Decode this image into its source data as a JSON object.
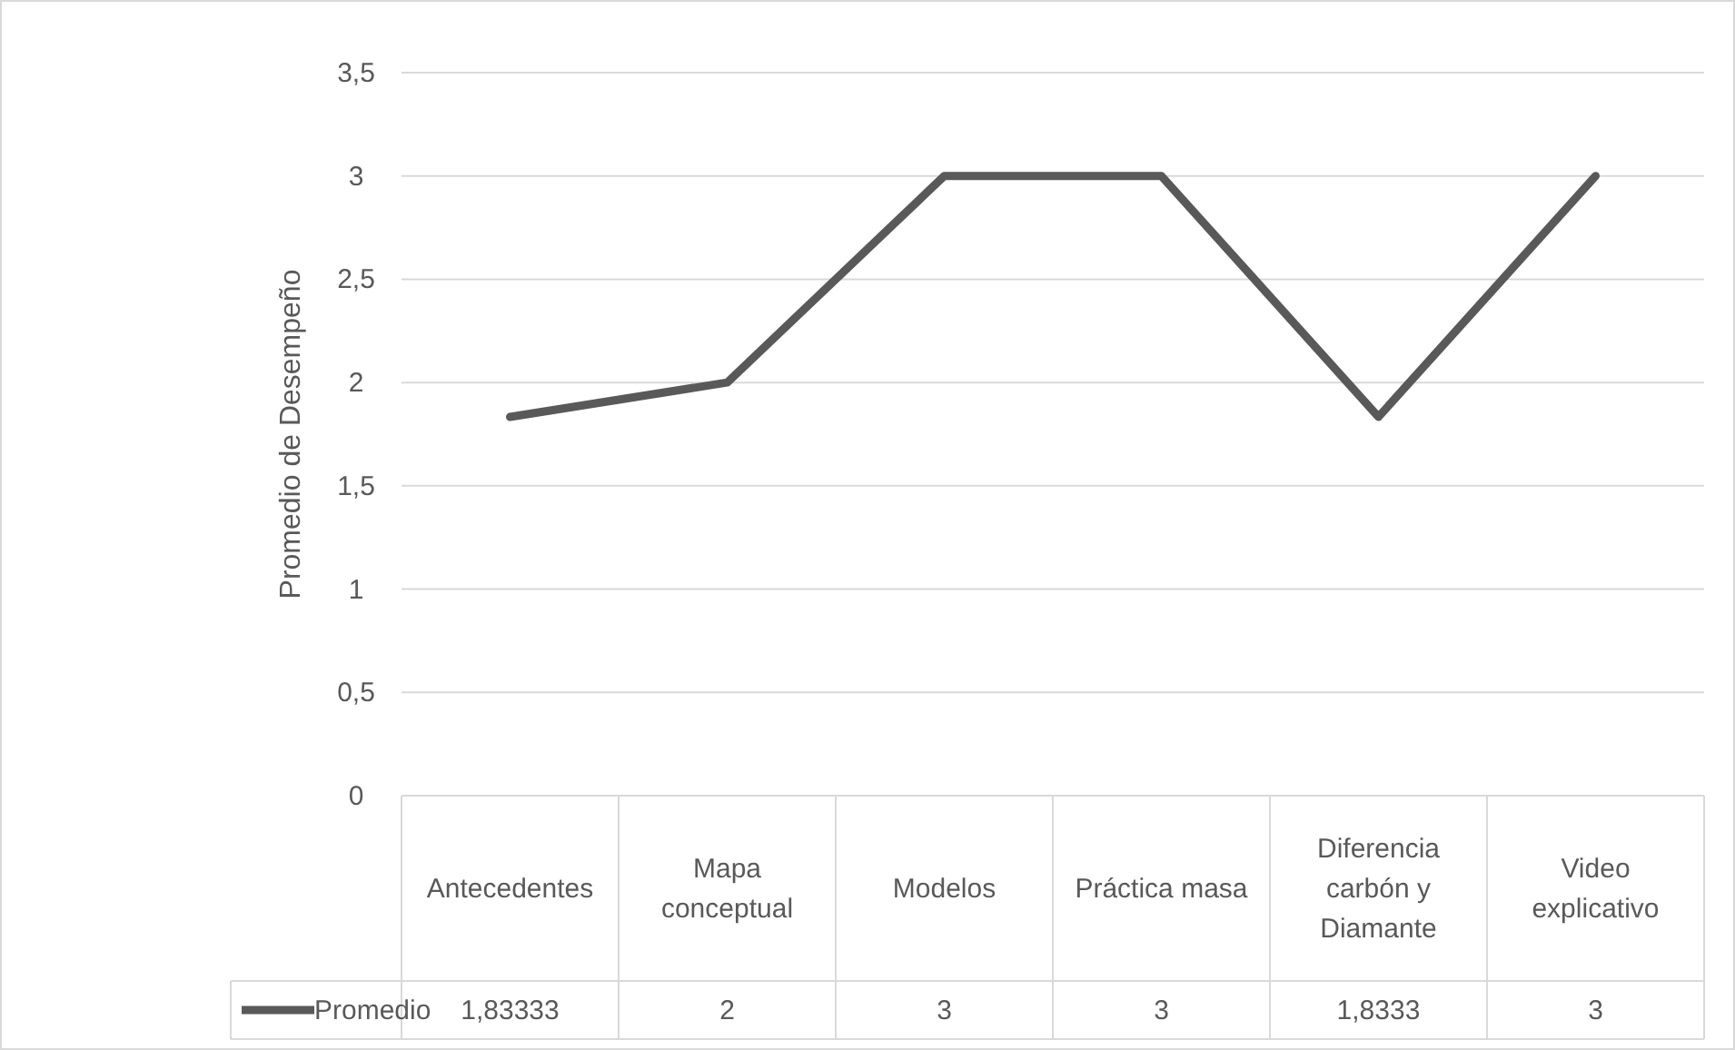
{
  "chart_data": {
    "type": "line",
    "ylabel": "Promedio de Desempeño",
    "categories": [
      "Antecedentes",
      "Mapa conceptual",
      "Modelos",
      "Práctica masa",
      "Diferencia carbón y Diamante",
      "Video explicativo"
    ],
    "series": [
      {
        "name": "Promedio",
        "color": "#595959",
        "values": [
          1.83333,
          2,
          3,
          3,
          1.8333,
          3
        ],
        "value_labels": [
          "1,83333",
          "2",
          "3",
          "3",
          "1,8333",
          "3"
        ]
      }
    ],
    "ylim": [
      0,
      3.5
    ],
    "yticks": [
      0,
      {
        "value": 0.5,
        "label": "0,5"
      },
      1,
      {
        "value": 1.5,
        "label": "1,5"
      },
      2,
      {
        "value": 2.5,
        "label": "2,5"
      },
      3,
      {
        "value": 3.5,
        "label": "3,5"
      }
    ],
    "grid": "y",
    "legend": "bottom",
    "marker": "none",
    "line_style": "solid"
  }
}
